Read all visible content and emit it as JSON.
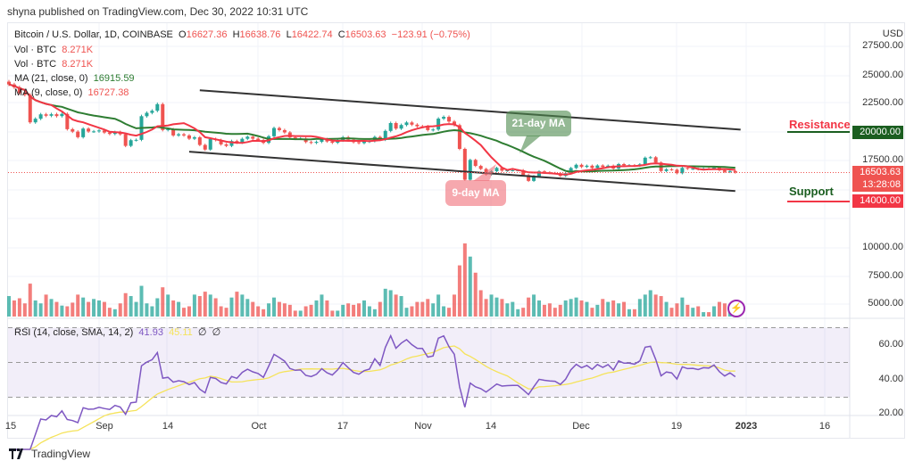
{
  "publish_line": "shyna published on TradingView.com, Dec 30, 2022 10:31 UTC",
  "symbol": {
    "title": "Bitcoin / U.S. Dollar, 1D, COINBASE",
    "o_label": "O",
    "open": "16627.36",
    "h_label": "H",
    "high": "16638.76",
    "l_label": "L",
    "low": "16422.74",
    "c_label": "C",
    "close": "16503.63",
    "change": "−123.91 (−0.75%)"
  },
  "indicators": {
    "vol1": {
      "label": "Vol · BTC",
      "value": "8.271K"
    },
    "vol2": {
      "label": "Vol · BTC",
      "value": "8.271K"
    },
    "ma21": {
      "label": "MA (21, close, 0)",
      "value": "16915.59"
    },
    "ma9": {
      "label": "MA (9, close, 0)",
      "value": "16727.38"
    },
    "rsi": {
      "label": "RSI (14, close, SMA, 14, 2)",
      "value": "41.93",
      "sma": "45.11",
      "extra1": "∅",
      "extra2": "∅"
    }
  },
  "price_axis": {
    "currency": "USD",
    "labels": [
      "27500.00",
      "25000.00",
      "22500.00",
      "17500.00",
      "10000.00",
      "7500.00",
      "5000.00"
    ],
    "resistance_tag": "20000.00",
    "last_price_tag": "16503.63",
    "countdown": "13:28:08",
    "support_tag": "14000.00"
  },
  "rsi_axis": [
    "60.00",
    "40.00",
    "20.00"
  ],
  "time_axis": [
    "15",
    "Sep",
    "14",
    "Oct",
    "17",
    "Nov",
    "14",
    "Dec",
    "19",
    "2023",
    "16"
  ],
  "annotations": {
    "resistance": "Resistance",
    "support": "Support",
    "ma21_bubble": "21-day MA",
    "ma9_bubble": "9-day MA"
  },
  "footer": {
    "brand": "TradingView"
  },
  "colors": {
    "up": "#26a69a",
    "down": "#ef5350",
    "ma21": "#2e7d32",
    "ma9": "#f23645",
    "rsi": "#7e57c2",
    "rsi_sma": "#f5e35a",
    "trendline": "#333333"
  },
  "chart_data": {
    "type": "candlestick",
    "start_date": "2022-08-15",
    "end_date": "2022-12-30",
    "closes": [
      24100,
      23850,
      23340,
      23200,
      20830,
      21140,
      21520,
      21400,
      21530,
      21370,
      21560,
      20240,
      20030,
      19550,
      20290,
      20040,
      20050,
      20130,
      19950,
      19830,
      19990,
      19800,
      18800,
      19290,
      19320,
      21360,
      21650,
      21830,
      22400,
      20170,
      20230,
      19700,
      19800,
      19700,
      19420,
      19540,
      18880,
      18480,
      19400,
      19300,
      18930,
      18800,
      19220,
      19080,
      19410,
      19590,
      19420,
      19310,
      19060,
      19630,
      20340,
      20160,
      19960,
      19530,
      19420,
      19440,
      19130,
      19060,
      19150,
      19380,
      19180,
      19070,
      19260,
      19550,
      19330,
      19120,
      19040,
      19160,
      19210,
      19570,
      19330,
      20090,
      20770,
      20290,
      20600,
      20820,
      20630,
      20490,
      20480,
      20160,
      20210,
      21150,
      21300,
      20900,
      20590,
      18540,
      15880,
      17590,
      17070,
      16810,
      16330,
      16610,
      16900,
      16660,
      16690,
      16700,
      16700,
      16280,
      15780,
      16190,
      16600,
      16520,
      16460,
      16440,
      16210,
      16440,
      16890,
      17170,
      16980,
      17090,
      16890,
      17110,
      16970,
      17090,
      16840,
      17230,
      17130,
      17130,
      17090,
      17210,
      17780,
      17820,
      17360,
      16630,
      16780,
      16740,
      16440,
      16900,
      16820,
      16830,
      16780,
      16840,
      16830,
      16920,
      16700,
      16550,
      16630,
      16503.63
    ],
    "volumes_k": [
      28,
      22,
      25,
      18,
      45,
      22,
      18,
      30,
      24,
      20,
      15,
      14,
      19,
      30,
      26,
      20,
      24,
      22,
      20,
      12,
      10,
      18,
      32,
      28,
      20,
      42,
      18,
      14,
      25,
      40,
      30,
      22,
      20,
      12,
      14,
      30,
      28,
      34,
      30,
      25,
      14,
      12,
      26,
      34,
      30,
      24,
      20,
      14,
      10,
      18,
      26,
      20,
      18,
      16,
      8,
      8,
      14,
      16,
      22,
      30,
      22,
      8,
      8,
      16,
      18,
      16,
      18,
      22,
      14,
      10,
      20,
      38,
      36,
      30,
      28,
      12,
      14,
      20,
      20,
      24,
      18,
      30,
      14,
      12,
      30,
      70,
      100,
      82,
      60,
      36,
      24,
      30,
      26,
      24,
      18,
      20,
      10,
      12,
      26,
      30,
      22,
      16,
      18,
      12,
      16,
      22,
      24,
      26,
      22,
      20,
      12,
      16,
      24,
      20,
      22,
      18,
      20,
      10,
      10,
      24,
      30,
      36,
      30,
      28,
      20,
      12,
      18,
      26,
      16,
      12,
      14,
      6,
      6,
      14,
      20,
      18,
      16,
      8.271
    ],
    "levels": {
      "resistance": 20000,
      "support": 14000
    },
    "trendlines": [
      {
        "from": [
          "2022-09-20",
          23600
        ],
        "to": [
          "2022-12-31",
          20200
        ]
      },
      {
        "from": [
          "2022-09-18",
          18300
        ],
        "to": [
          "2022-12-30",
          14900
        ]
      }
    ],
    "rsi_bands": [
      70,
      50,
      30
    ],
    "price_range": [
      13000,
      28500
    ],
    "rsi_range": [
      18,
      72
    ]
  }
}
